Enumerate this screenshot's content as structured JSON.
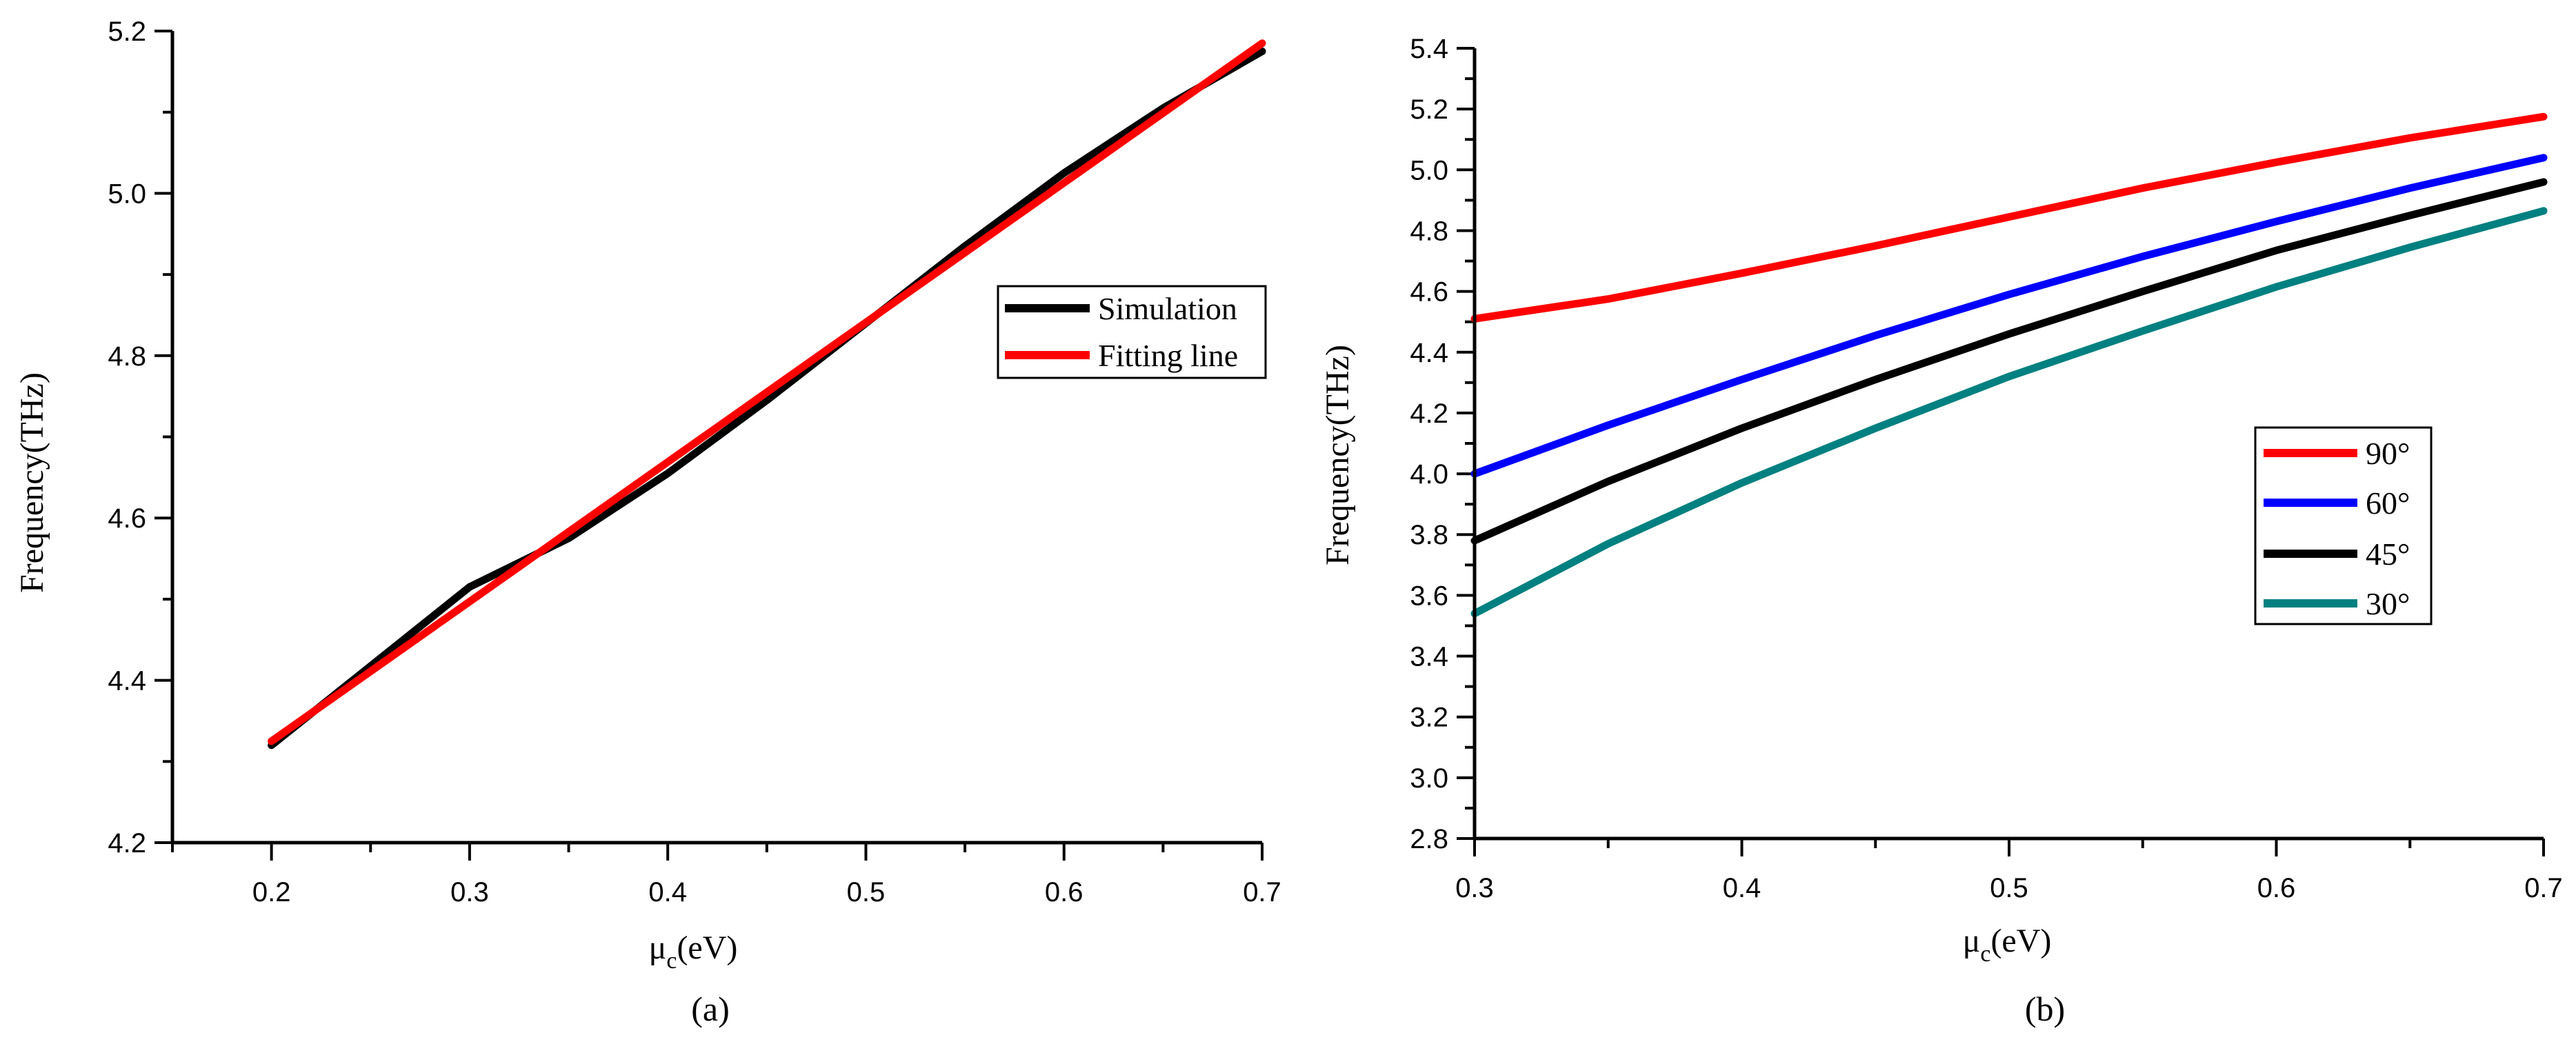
{
  "chart_data": [
    {
      "type": "line",
      "caption": "(a)",
      "xlabel_main": "μ",
      "xlabel_sub": "c",
      "xlabel_unit": "(eV)",
      "ylabel": "Frequency(THz)",
      "xlim": [
        0.15,
        0.7
      ],
      "ylim": [
        4.2,
        5.2
      ],
      "xticks": [
        "0.2",
        "0.3",
        "0.4",
        "0.5",
        "0.6",
        "0.7"
      ],
      "yticks": [
        "4.2",
        "4.4",
        "4.6",
        "4.8",
        "5.0",
        "5.2"
      ],
      "series": [
        {
          "name": "Simulation",
          "color": "#000000",
          "x": [
            0.2,
            0.3,
            0.35,
            0.4,
            0.45,
            0.5,
            0.55,
            0.6,
            0.65,
            0.7
          ],
          "y": [
            4.32,
            4.515,
            4.575,
            4.655,
            4.745,
            4.84,
            4.935,
            5.025,
            5.105,
            5.175
          ]
        },
        {
          "name": "Fitting line",
          "color": "#ff0000",
          "x": [
            0.2,
            0.7
          ],
          "y": [
            4.325,
            5.185
          ]
        }
      ]
    },
    {
      "type": "line",
      "caption": "(b)",
      "xlabel_main": "μ",
      "xlabel_sub": "c",
      "xlabel_unit": "(eV)",
      "ylabel": "Frequency(THz)",
      "xlim": [
        0.3,
        0.7
      ],
      "ylim": [
        2.8,
        5.4
      ],
      "xticks": [
        "0.3",
        "0.4",
        "0.5",
        "0.6",
        "0.7"
      ],
      "yticks": [
        "2.8",
        "3.0",
        "3.2",
        "3.4",
        "3.6",
        "3.8",
        "4.0",
        "4.2",
        "4.4",
        "4.6",
        "4.8",
        "5.0",
        "5.2",
        "5.4"
      ],
      "series": [
        {
          "name": "90°",
          "color": "#ff0000",
          "x": [
            0.3,
            0.35,
            0.4,
            0.45,
            0.5,
            0.55,
            0.6,
            0.65,
            0.7
          ],
          "y": [
            4.51,
            4.575,
            4.66,
            4.75,
            4.845,
            4.94,
            5.025,
            5.105,
            5.175
          ]
        },
        {
          "name": "60°",
          "color": "#0000ff",
          "x": [
            0.3,
            0.35,
            0.4,
            0.45,
            0.5,
            0.55,
            0.6,
            0.65,
            0.7
          ],
          "y": [
            4.0,
            4.16,
            4.31,
            4.455,
            4.59,
            4.715,
            4.83,
            4.94,
            5.04
          ]
        },
        {
          "name": "45°",
          "color": "#000000",
          "x": [
            0.3,
            0.35,
            0.4,
            0.45,
            0.5,
            0.55,
            0.6,
            0.65,
            0.7
          ],
          "y": [
            3.78,
            3.975,
            4.15,
            4.31,
            4.46,
            4.6,
            4.735,
            4.85,
            4.96
          ]
        },
        {
          "name": "30°",
          "color": "#008080",
          "x": [
            0.3,
            0.35,
            0.4,
            0.45,
            0.5,
            0.55,
            0.6,
            0.65,
            0.7
          ],
          "y": [
            3.54,
            3.77,
            3.97,
            4.15,
            4.32,
            4.47,
            4.615,
            4.745,
            4.865
          ]
        }
      ]
    }
  ]
}
